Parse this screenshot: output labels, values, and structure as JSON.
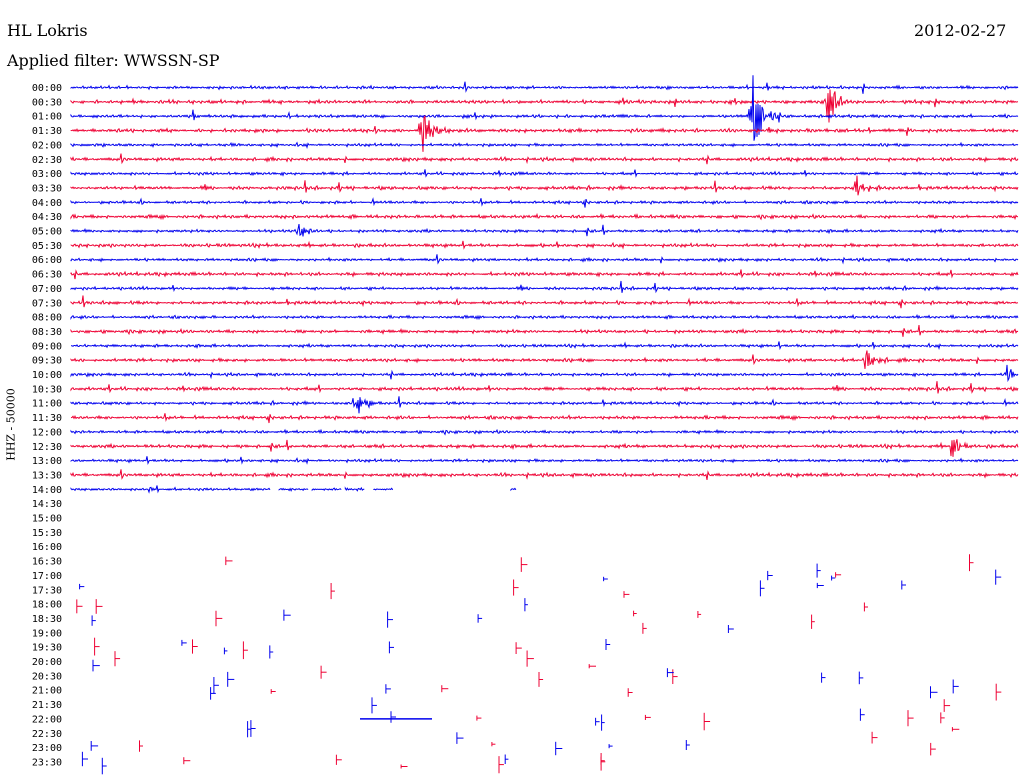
{
  "header": {
    "station": "HL Lokris",
    "date": "2012-02-27",
    "filter_label": "Applied filter: WWSSN-SP"
  },
  "chart_data": {
    "type": "line",
    "title": "HL Lokris",
    "subtitle": "Applied filter: WWSSN-SP",
    "ylabel": "HHZ - 50000",
    "xlabel": "",
    "tick_labels": [
      "00:00",
      "00:30",
      "01:00",
      "01:30",
      "02:00",
      "02:30",
      "03:00",
      "03:30",
      "04:00",
      "04:30",
      "05:00",
      "05:30",
      "06:00",
      "06:30",
      "07:00",
      "07:30",
      "08:00",
      "08:30",
      "09:00",
      "09:30",
      "10:00",
      "10:30",
      "11:00",
      "11:30",
      "12:00",
      "12:30",
      "13:00",
      "13:30",
      "14:00",
      "14:30",
      "15:00",
      "15:30",
      "16:00",
      "16:30",
      "17:00",
      "17:30",
      "18:00",
      "18:30",
      "19:00",
      "19:30",
      "20:00",
      "20:30",
      "21:00",
      "21:30",
      "22:00",
      "22:30",
      "23:00",
      "23:30"
    ],
    "colors": {
      "even_rows": "#0000ee",
      "odd_rows": "#ee0033"
    },
    "continuous_rows": 28,
    "partial_row": "14:00",
    "events": [
      {
        "row": "01:00",
        "time_fraction": 0.72,
        "amplitude": 1.0
      },
      {
        "row": "01:30",
        "time_fraction": 0.37,
        "amplitude": 0.6
      },
      {
        "row": "00:30",
        "time_fraction": 0.8,
        "amplitude": 0.7
      },
      {
        "row": "03:30",
        "time_fraction": 0.83,
        "amplitude": 0.3
      },
      {
        "row": "09:30",
        "time_fraction": 0.84,
        "amplitude": 0.35
      },
      {
        "row": "10:00",
        "time_fraction": 0.99,
        "amplitude": 0.3
      },
      {
        "row": "11:00",
        "time_fraction": 0.3,
        "amplitude": 0.35
      },
      {
        "row": "12:30",
        "time_fraction": 0.93,
        "amplitude": 0.3
      },
      {
        "row": "05:00",
        "time_fraction": 0.24,
        "amplitude": 0.2
      }
    ]
  }
}
